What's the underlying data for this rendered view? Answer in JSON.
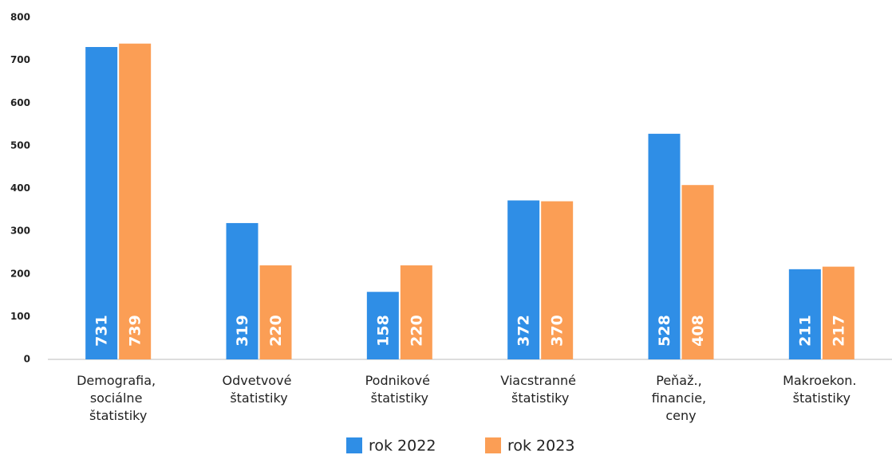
{
  "chart_data": {
    "type": "bar",
    "categories": [
      "Demografia, sociálne štatistiky",
      "Odvetvové štatistiky",
      "Podnikové štatistiky",
      "Viacstranné štatistiky",
      "Peňaž., financie, ceny",
      "Makroekon. štatistiky"
    ],
    "series": [
      {
        "name": "rok 2022",
        "color": "#2f8ee6",
        "values": [
          731,
          319,
          158,
          372,
          528,
          211
        ]
      },
      {
        "name": "rok 2023",
        "color": "#fb9e55",
        "values": [
          739,
          220,
          220,
          370,
          408,
          217
        ]
      }
    ],
    "ylim": [
      0,
      800
    ],
    "yticks": [
      0,
      100,
      200,
      300,
      400,
      500,
      600,
      700,
      800
    ],
    "grid": false
  }
}
